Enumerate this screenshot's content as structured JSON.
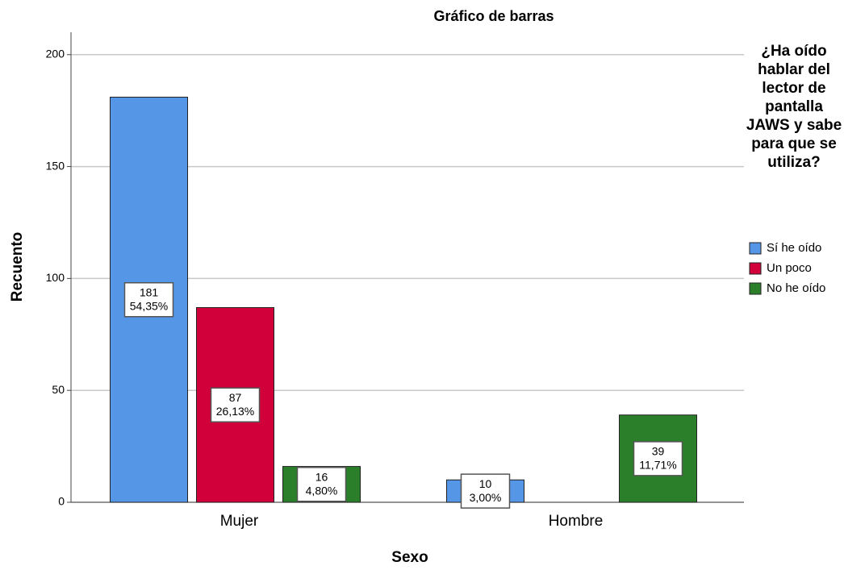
{
  "chart_data": {
    "type": "bar",
    "title": "Gráfico de barras",
    "xlabel": "Sexo",
    "ylabel": "Recuento",
    "categories": [
      "Mujer",
      "Hombre"
    ],
    "legend_title": "¿Ha oído hablar del lector de pantalla JAWS y sabe para que se utiliza?",
    "series": [
      {
        "name": "Sí he oído",
        "color": "#5596e6",
        "values": [
          181,
          10
        ],
        "percentages": [
          54.35,
          3.0
        ],
        "percentage_labels": [
          "54,35%",
          "3,00%"
        ]
      },
      {
        "name": "Un poco",
        "color": "#d2003a",
        "values": [
          87,
          null
        ],
        "percentages": [
          26.13,
          null
        ],
        "percentage_labels": [
          "26,13%",
          null
        ]
      },
      {
        "name": "No he oído",
        "color": "#2b7f2b",
        "values": [
          16,
          39
        ],
        "percentages": [
          4.8,
          11.71
        ],
        "percentage_labels": [
          "4,80%",
          "11,71%"
        ]
      }
    ],
    "ylim": [
      0,
      210
    ],
    "yticks": [
      0,
      50,
      100,
      150,
      200
    ],
    "grid": true,
    "legend": "right"
  }
}
